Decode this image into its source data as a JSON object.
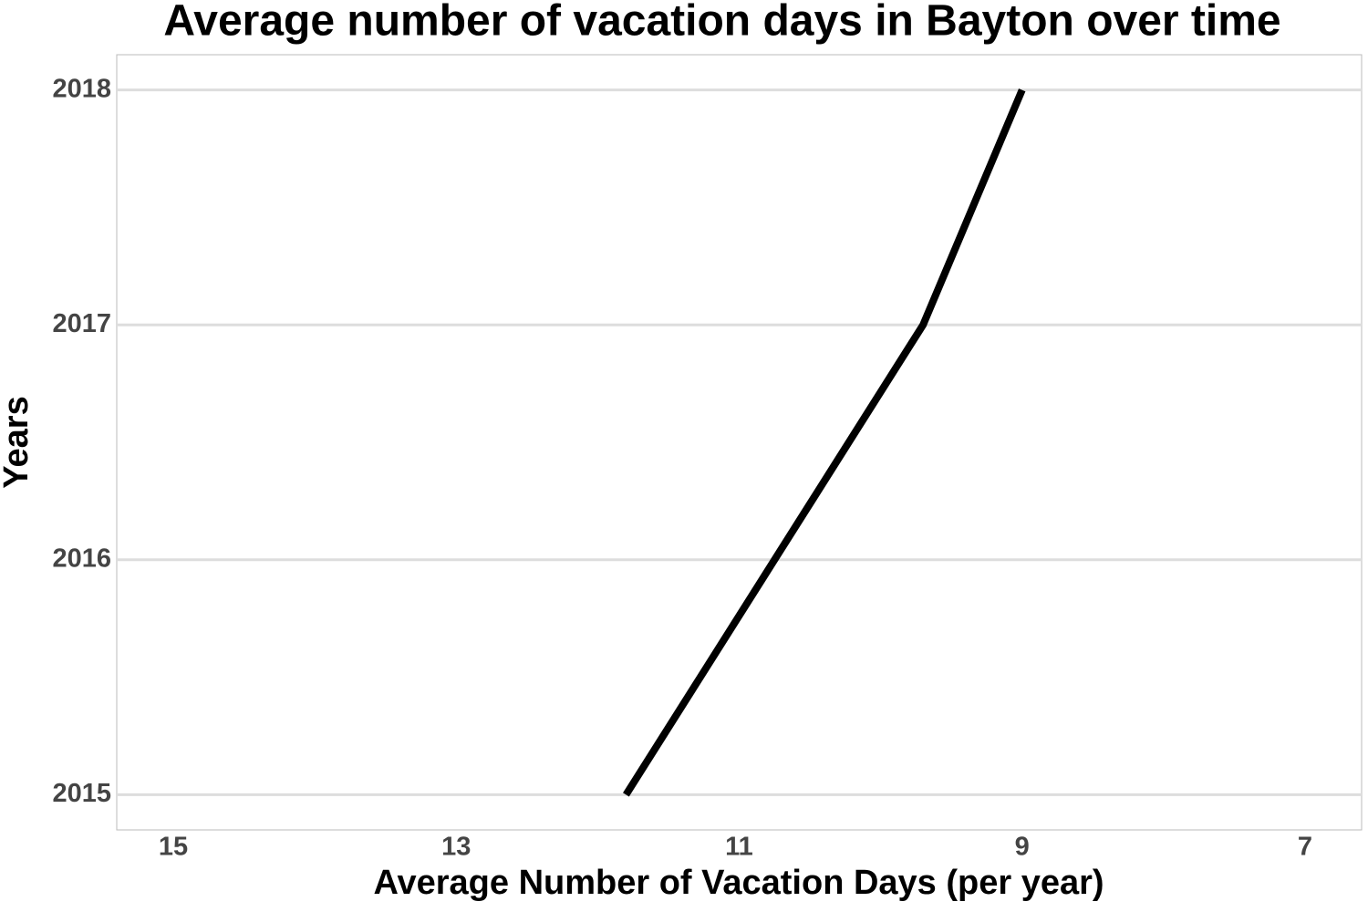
{
  "chart_data": {
    "type": "line",
    "title": "Average number of vacation days in Bayton over time",
    "x_label": "Average Number of Vacation Days (per year)",
    "y_label": "Years",
    "y": [
      2015,
      2016,
      2017,
      2018
    ],
    "values": [
      11.8,
      10.75,
      9.7,
      9.0
    ],
    "color": "#000000",
    "xlim": [
      15.4,
      6.6
    ],
    "xticks": [
      15,
      13,
      11,
      9,
      7
    ],
    "ylim": [
      2014.85,
      2018.15
    ],
    "yticks": [
      2015,
      2016,
      2017,
      2018
    ],
    "grid": true
  }
}
